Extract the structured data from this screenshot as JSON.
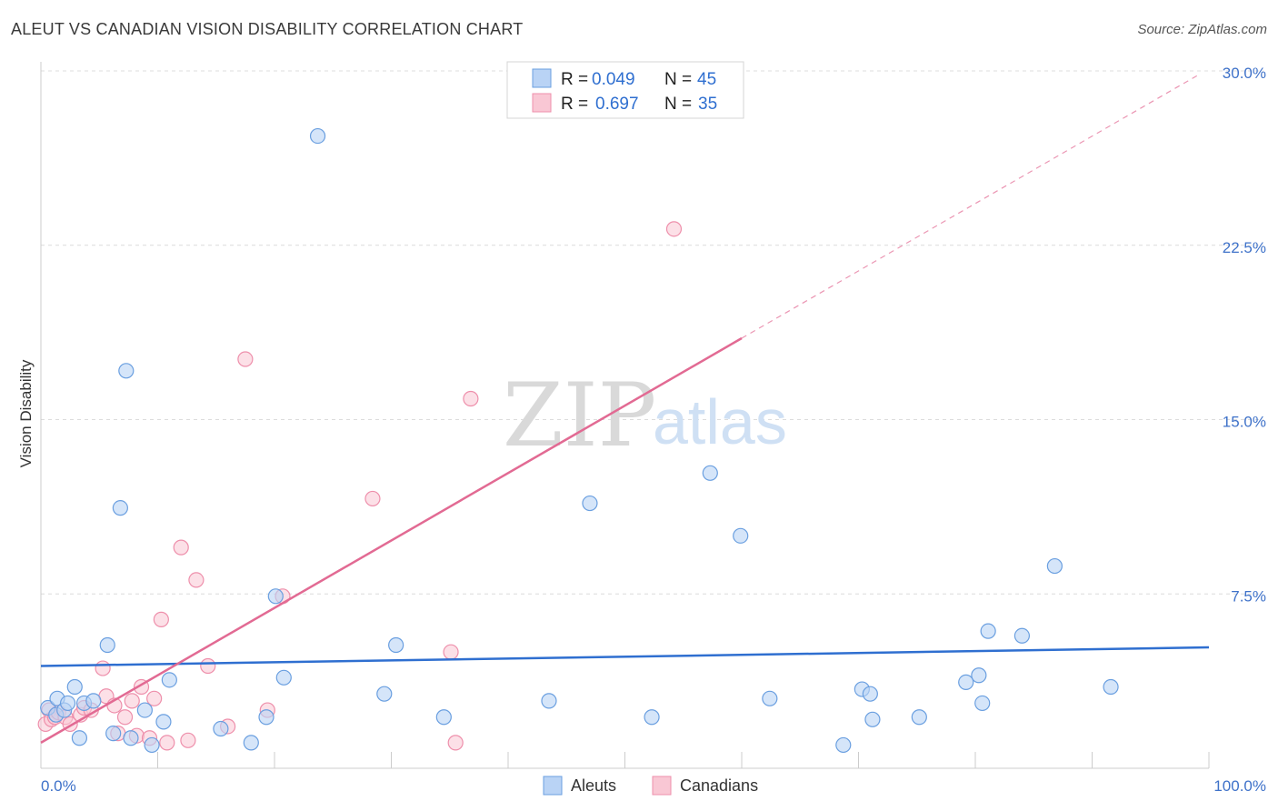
{
  "title": "ALEUT VS CANADIAN VISION DISABILITY CORRELATION CHART",
  "source": "Source: ZipAtlas.com",
  "watermark": {
    "zip": "ZIP",
    "atlas": "atlas"
  },
  "colors": {
    "aleut_fill": "#b9d3f5",
    "aleut_stroke": "#6a9fe0",
    "aleut_line": "#2f6fd0",
    "canadian_fill": "#f9c7d4",
    "canadian_stroke": "#ee8fab",
    "canadian_line": "#e26a93",
    "grid": "#dcdcdc",
    "tick_text": "#3f72c9"
  },
  "legend": {
    "aleut": {
      "r_label": "R =",
      "r_value": "0.049",
      "n_label": "N =",
      "n_value": "45"
    },
    "canadian": {
      "r_label": "R =",
      "r_value": "0.697",
      "n_label": "N =",
      "n_value": "35"
    }
  },
  "bottom_legend": {
    "aleuts": "Aleuts",
    "canadians": "Canadians"
  },
  "chart_data": {
    "type": "scatter",
    "title": "ALEUT VS CANADIAN VISION DISABILITY CORRELATION CHART",
    "xlabel": "",
    "ylabel": "Vision Disability",
    "xlim": [
      0,
      100
    ],
    "ylim": [
      0,
      30
    ],
    "x_tick_labels": [
      "0.0%",
      "100.0%"
    ],
    "y_ticks": [
      7.5,
      15.0,
      22.5,
      30.0
    ],
    "y_tick_labels": [
      "7.5%",
      "15.0%",
      "22.5%",
      "30.0%"
    ],
    "grid": true,
    "series": [
      {
        "name": "Aleuts",
        "r": 0.049,
        "n": 45,
        "trend": {
          "x": [
            0,
            100
          ],
          "y": [
            4.4,
            5.2
          ],
          "style": "solid"
        },
        "points": [
          [
            0.6,
            2.6
          ],
          [
            1.3,
            2.3
          ],
          [
            1.4,
            3.0
          ],
          [
            2.0,
            2.5
          ],
          [
            2.3,
            2.8
          ],
          [
            2.9,
            3.5
          ],
          [
            3.3,
            1.3
          ],
          [
            3.7,
            2.8
          ],
          [
            4.5,
            2.9
          ],
          [
            5.7,
            5.3
          ],
          [
            6.2,
            1.5
          ],
          [
            6.8,
            11.2
          ],
          [
            7.3,
            17.1
          ],
          [
            7.7,
            1.3
          ],
          [
            8.9,
            2.5
          ],
          [
            9.5,
            1.0
          ],
          [
            10.5,
            2.0
          ],
          [
            11.0,
            3.8
          ],
          [
            15.4,
            1.7
          ],
          [
            18.0,
            1.1
          ],
          [
            19.3,
            2.2
          ],
          [
            20.1,
            7.4
          ],
          [
            20.8,
            3.9
          ],
          [
            23.7,
            27.2
          ],
          [
            29.4,
            3.2
          ],
          [
            30.4,
            5.3
          ],
          [
            34.5,
            2.2
          ],
          [
            43.5,
            2.9
          ],
          [
            47.0,
            11.4
          ],
          [
            52.3,
            2.2
          ],
          [
            57.3,
            12.7
          ],
          [
            59.9,
            10.0
          ],
          [
            62.4,
            3.0
          ],
          [
            68.7,
            1.0
          ],
          [
            70.3,
            3.4
          ],
          [
            71.0,
            3.2
          ],
          [
            71.2,
            2.1
          ],
          [
            75.2,
            2.2
          ],
          [
            79.2,
            3.7
          ],
          [
            80.3,
            4.0
          ],
          [
            80.6,
            2.8
          ],
          [
            81.1,
            5.9
          ],
          [
            84.0,
            5.7
          ],
          [
            86.8,
            8.7
          ],
          [
            91.6,
            3.5
          ]
        ]
      },
      {
        "name": "Canadians",
        "r": 0.697,
        "n": 35,
        "trend": {
          "x": [
            0,
            60
          ],
          "y": [
            1.1,
            18.5
          ],
          "style": "solid",
          "extension": {
            "x": [
              60,
              99
            ],
            "y": [
              18.5,
              29.8
            ],
            "style": "dashed"
          }
        },
        "points": [
          [
            0.4,
            1.9
          ],
          [
            0.7,
            2.5
          ],
          [
            0.9,
            2.1
          ],
          [
            1.2,
            2.2
          ],
          [
            1.5,
            2.4
          ],
          [
            2.1,
            2.2
          ],
          [
            2.5,
            1.9
          ],
          [
            3.4,
            2.3
          ],
          [
            3.7,
            2.6
          ],
          [
            4.3,
            2.5
          ],
          [
            5.3,
            4.3
          ],
          [
            5.6,
            3.1
          ],
          [
            6.3,
            2.7
          ],
          [
            6.6,
            1.5
          ],
          [
            7.2,
            2.2
          ],
          [
            7.8,
            2.9
          ],
          [
            8.2,
            1.4
          ],
          [
            8.6,
            3.5
          ],
          [
            9.3,
            1.3
          ],
          [
            9.7,
            3.0
          ],
          [
            10.3,
            6.4
          ],
          [
            10.8,
            1.1
          ],
          [
            12.0,
            9.5
          ],
          [
            12.6,
            1.2
          ],
          [
            13.3,
            8.1
          ],
          [
            14.3,
            4.4
          ],
          [
            16.0,
            1.8
          ],
          [
            17.5,
            17.6
          ],
          [
            19.4,
            2.5
          ],
          [
            20.7,
            7.4
          ],
          [
            28.4,
            11.6
          ],
          [
            35.1,
            5.0
          ],
          [
            35.5,
            1.1
          ],
          [
            36.8,
            15.9
          ],
          [
            54.2,
            23.2
          ]
        ]
      }
    ]
  }
}
